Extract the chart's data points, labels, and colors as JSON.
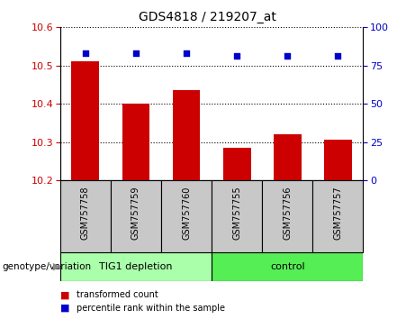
{
  "title": "GDS4818 / 219207_at",
  "samples": [
    "GSM757758",
    "GSM757759",
    "GSM757760",
    "GSM757755",
    "GSM757756",
    "GSM757757"
  ],
  "bar_values": [
    10.51,
    10.4,
    10.435,
    10.285,
    10.32,
    10.305
  ],
  "percentile_values": [
    83,
    83,
    83,
    81,
    81,
    81
  ],
  "bar_bottom": 10.2,
  "ylim": [
    10.2,
    10.6
  ],
  "y2lim": [
    0,
    100
  ],
  "yticks": [
    10.2,
    10.3,
    10.4,
    10.5,
    10.6
  ],
  "y2ticks": [
    0,
    25,
    50,
    75,
    100
  ],
  "bar_color": "#cc0000",
  "percentile_color": "#0000cc",
  "group1_label": "TIG1 depletion",
  "group2_label": "control",
  "group1_color": "#aaffaa",
  "group2_color": "#55ee55",
  "xlabel_genotype": "genotype/variation",
  "legend_bar_label": "transformed count",
  "legend_pct_label": "percentile rank within the sample",
  "tick_area_bg": "#c8c8c8"
}
